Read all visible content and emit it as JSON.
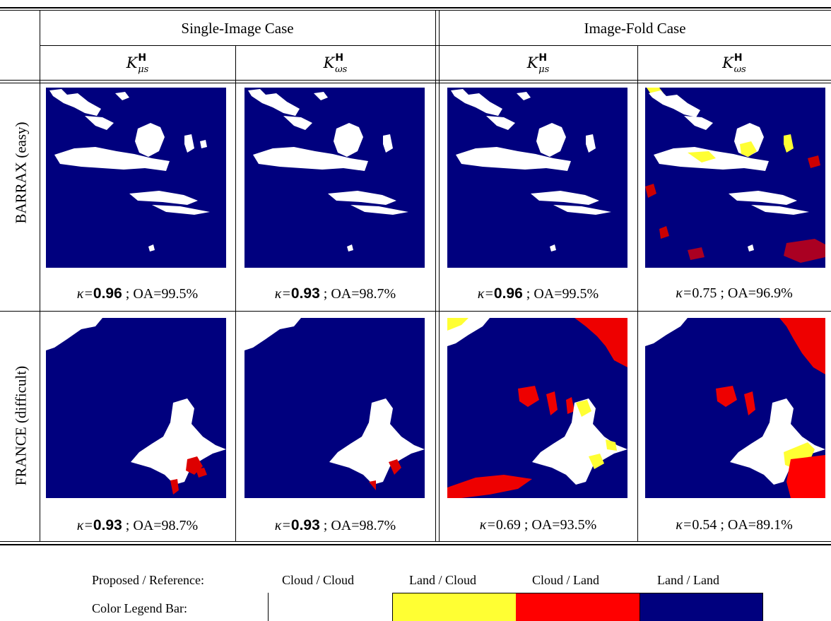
{
  "header": {
    "single_case": "Single-Image Case",
    "fold_case": "Image-Fold Case",
    "kernel_symbol": "K",
    "kernel_sup": "H",
    "kernels": [
      {
        "sub": "μs"
      },
      {
        "sub": "ωs"
      },
      {
        "sub": "μs"
      },
      {
        "sub": "ωs"
      }
    ]
  },
  "rows": [
    {
      "label": "BARRAX (easy)",
      "captions": [
        {
          "kappa": "0.96",
          "bold": true,
          "oa": "99.5%"
        },
        {
          "kappa": "0.93",
          "bold": true,
          "oa": "98.7%"
        },
        {
          "kappa": "0.96",
          "bold": true,
          "oa": "99.5%"
        },
        {
          "kappa": "0.75",
          "bold": false,
          "oa": "96.9%"
        }
      ]
    },
    {
      "label": "FRANCE (difficult)",
      "captions": [
        {
          "kappa": "0.93",
          "bold": true,
          "oa": "98.7%"
        },
        {
          "kappa": "0.93",
          "bold": true,
          "oa": "98.7%"
        },
        {
          "kappa": "0.69",
          "bold": false,
          "oa": "93.5%"
        },
        {
          "kappa": "0.54",
          "bold": false,
          "oa": "89.1%"
        }
      ]
    }
  ],
  "caption_parts": {
    "kappa_symbol": "κ=",
    "sep": " ; ",
    "oa_prefix": "OA="
  },
  "legend": {
    "row_label": "Proposed / Reference:",
    "bar_label": "Color Legend Bar:",
    "items": [
      {
        "label": "Cloud / Cloud",
        "color": "#ffffff"
      },
      {
        "label": "Land / Cloud",
        "color": "#ffff33"
      },
      {
        "label": "Cloud / Land",
        "color": "#ff0000"
      },
      {
        "label": "Land / Land",
        "color": "#00007e"
      }
    ]
  }
}
